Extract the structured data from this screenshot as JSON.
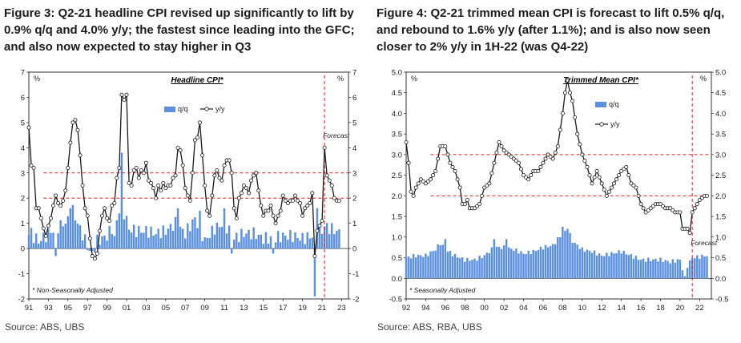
{
  "left": {
    "figure_title": "Figure 3: Q2-21 headline CPI revised up significantly to lift by 0.9% q/q and 4.0% y/y; the fastest since leading into the GFC; and also now expected to stay higher in Q3",
    "source": "Source: ABS, UBS"
  },
  "right": {
    "figure_title": "Figure 4: Q2-21 trimmed mean CPI is forecast to lift 0.5% q/q, and rebound to 1.6% y/y (after 1.1%); and is also now seen closer to 2% y/y in 1H-22 (was Q4-22)",
    "source": "Source: ABS, RBA, UBS"
  },
  "colors": {
    "bar": "#5b8fe0",
    "line": "#1a1a1a",
    "ref": "#e02020"
  },
  "chart_data": [
    {
      "type": "bar+line",
      "title": "Headline CPI*",
      "unit_left": "%",
      "unit_right": "%",
      "ylim": [
        -2,
        7
      ],
      "yticks": [
        -2,
        -1,
        0,
        1,
        2,
        3,
        4,
        5,
        6,
        7
      ],
      "x_range": [
        1991,
        2023.7
      ],
      "x_ticks": [
        1991,
        1993,
        1995,
        1997,
        1999,
        2001,
        2003,
        2005,
        2007,
        2009,
        2011,
        2013,
        2015,
        2017,
        2019,
        2021,
        2023
      ],
      "x_tick_labels": [
        "91",
        "93",
        "95",
        "97",
        "99",
        "01",
        "03",
        "05",
        "07",
        "09",
        "11",
        "13",
        "15",
        "17",
        "19",
        "21",
        "23"
      ],
      "legend": [
        "q/q",
        "y/y"
      ],
      "reference_lines": [
        3,
        2
      ],
      "reference_x_start": 1992.5,
      "forecast_start": 2021.25,
      "forecast_label": "Forecast",
      "note": "* Non-Seasonally Adjusted",
      "yoy_knots": [
        [
          1991.0,
          4.8
        ],
        [
          1991.25,
          3.3
        ],
        [
          1991.5,
          3.2
        ],
        [
          1991.75,
          1.6
        ],
        [
          1992.0,
          1.6
        ],
        [
          1992.25,
          1.2
        ],
        [
          1992.5,
          0.8
        ],
        [
          1992.75,
          0.5
        ],
        [
          1993.0,
          0.9
        ],
        [
          1993.25,
          1.2
        ],
        [
          1993.5,
          1.7
        ],
        [
          1993.75,
          2.1
        ],
        [
          1994.0,
          1.8
        ],
        [
          1994.25,
          1.7
        ],
        [
          1994.5,
          1.9
        ],
        [
          1994.75,
          2.3
        ],
        [
          1995.0,
          3.2
        ],
        [
          1995.25,
          4.2
        ],
        [
          1995.5,
          5.0
        ],
        [
          1995.75,
          5.1
        ],
        [
          1996.0,
          4.7
        ],
        [
          1996.25,
          3.7
        ],
        [
          1996.5,
          2.5
        ],
        [
          1996.75,
          1.6
        ],
        [
          1997.0,
          1.3
        ],
        [
          1997.25,
          0.4
        ],
        [
          1997.5,
          -0.3
        ],
        [
          1997.75,
          -0.4
        ],
        [
          1998.0,
          -0.2
        ],
        [
          1998.25,
          0.7
        ],
        [
          1998.5,
          1.3
        ],
        [
          1998.75,
          1.6
        ],
        [
          1999.0,
          1.2
        ],
        [
          1999.25,
          1.1
        ],
        [
          1999.5,
          1.7
        ],
        [
          1999.75,
          1.8
        ],
        [
          2000.0,
          2.8
        ],
        [
          2000.25,
          3.2
        ],
        [
          2000.5,
          6.1
        ],
        [
          2000.75,
          5.9
        ],
        [
          2001.0,
          6.1
        ],
        [
          2001.25,
          2.6
        ],
        [
          2001.5,
          2.5
        ],
        [
          2001.75,
          3.1
        ],
        [
          2002.0,
          3.2
        ],
        [
          2002.25,
          2.8
        ],
        [
          2002.5,
          3.1
        ],
        [
          2002.75,
          3.0
        ],
        [
          2003.0,
          3.4
        ],
        [
          2003.25,
          2.7
        ],
        [
          2003.5,
          2.6
        ],
        [
          2003.75,
          2.4
        ],
        [
          2004.0,
          2.0
        ],
        [
          2004.25,
          2.5
        ],
        [
          2004.5,
          2.3
        ],
        [
          2004.75,
          2.6
        ],
        [
          2005.0,
          2.4
        ],
        [
          2005.25,
          2.5
        ],
        [
          2005.5,
          2.5
        ],
        [
          2005.75,
          2.8
        ],
        [
          2006.0,
          2.9
        ],
        [
          2006.25,
          4.0
        ],
        [
          2006.5,
          3.9
        ],
        [
          2006.75,
          3.3
        ],
        [
          2007.0,
          2.4
        ],
        [
          2007.25,
          2.1
        ],
        [
          2007.5,
          1.9
        ],
        [
          2007.75,
          3.0
        ],
        [
          2008.0,
          4.3
        ],
        [
          2008.25,
          4.4
        ],
        [
          2008.5,
          5.0
        ],
        [
          2008.75,
          3.7
        ],
        [
          2009.0,
          2.5
        ],
        [
          2009.25,
          1.5
        ],
        [
          2009.5,
          1.3
        ],
        [
          2009.75,
          2.1
        ],
        [
          2010.0,
          2.9
        ],
        [
          2010.25,
          3.1
        ],
        [
          2010.5,
          2.8
        ],
        [
          2010.75,
          2.7
        ],
        [
          2011.0,
          3.3
        ],
        [
          2011.25,
          3.5
        ],
        [
          2011.5,
          3.5
        ],
        [
          2011.75,
          3.0
        ],
        [
          2012.0,
          1.6
        ],
        [
          2012.25,
          1.2
        ],
        [
          2012.5,
          2.0
        ],
        [
          2012.75,
          2.2
        ],
        [
          2013.0,
          2.5
        ],
        [
          2013.25,
          2.4
        ],
        [
          2013.5,
          2.2
        ],
        [
          2013.75,
          2.7
        ],
        [
          2014.0,
          2.9
        ],
        [
          2014.25,
          3.0
        ],
        [
          2014.5,
          2.3
        ],
        [
          2014.75,
          1.7
        ],
        [
          2015.0,
          1.3
        ],
        [
          2015.25,
          1.5
        ],
        [
          2015.5,
          1.5
        ],
        [
          2015.75,
          1.7
        ],
        [
          2016.0,
          1.3
        ],
        [
          2016.25,
          1.0
        ],
        [
          2016.5,
          1.3
        ],
        [
          2016.75,
          1.5
        ],
        [
          2017.0,
          2.1
        ],
        [
          2017.25,
          1.9
        ],
        [
          2017.5,
          1.8
        ],
        [
          2017.75,
          1.9
        ],
        [
          2018.0,
          1.9
        ],
        [
          2018.25,
          2.1
        ],
        [
          2018.5,
          1.9
        ],
        [
          2018.75,
          1.8
        ],
        [
          2019.0,
          1.3
        ],
        [
          2019.25,
          1.6
        ],
        [
          2019.5,
          1.7
        ],
        [
          2019.75,
          1.8
        ],
        [
          2020.0,
          2.2
        ],
        [
          2020.25,
          -0.3
        ],
        [
          2020.5,
          0.7
        ],
        [
          2020.75,
          0.9
        ],
        [
          2021.0,
          1.1
        ],
        [
          2021.25,
          4.0
        ],
        [
          2021.5,
          2.9
        ],
        [
          2021.75,
          2.7
        ],
        [
          2022.0,
          2.5
        ],
        [
          2022.25,
          2.0
        ],
        [
          2022.5,
          1.9
        ],
        [
          2022.75,
          1.9
        ]
      ],
      "qoq_knots": [
        [
          1991.0,
          0.7
        ],
        [
          1992.0,
          0.2
        ],
        [
          1993.0,
          0.6
        ],
        [
          1995.0,
          1.1
        ],
        [
          1995.5,
          1.5
        ],
        [
          1996.0,
          1.0
        ],
        [
          1997.0,
          0.1
        ],
        [
          1997.5,
          -0.2
        ],
        [
          1998.0,
          0.3
        ],
        [
          1999.0,
          0.5
        ],
        [
          2000.0,
          1.1
        ],
        [
          2000.5,
          2.0
        ],
        [
          2001.0,
          0.8
        ],
        [
          2002.0,
          0.7
        ],
        [
          2003.0,
          0.7
        ],
        [
          2004.0,
          0.6
        ],
        [
          2005.0,
          0.7
        ],
        [
          2006.0,
          1.0
        ],
        [
          2007.0,
          0.6
        ],
        [
          2008.0,
          1.2
        ],
        [
          2009.0,
          0.3
        ],
        [
          2010.0,
          0.8
        ],
        [
          2011.0,
          1.0
        ],
        [
          2012.0,
          0.4
        ],
        [
          2013.0,
          0.6
        ],
        [
          2014.0,
          0.6
        ],
        [
          2015.0,
          0.4
        ],
        [
          2016.0,
          0.4
        ],
        [
          2017.0,
          0.5
        ],
        [
          2018.0,
          0.5
        ],
        [
          2019.0,
          0.4
        ],
        [
          2020.0,
          0.5
        ],
        [
          2021.0,
          0.7
        ],
        [
          2021.25,
          0.9
        ],
        [
          2023.0,
          0.6
        ]
      ],
      "qoq_overrides": [
        [
          1991.75,
          0.6
        ],
        [
          1992.25,
          0.3
        ],
        [
          1993.75,
          -0.3
        ],
        [
          1995.25,
          1.6
        ],
        [
          1997.25,
          -0.1
        ],
        [
          1999.75,
          0.5
        ],
        [
          2000.5,
          3.8
        ],
        [
          2001.0,
          1.3
        ],
        [
          2006.25,
          1.6
        ],
        [
          2008.5,
          1.5
        ],
        [
          2011.0,
          1.6
        ],
        [
          2011.75,
          -0.2
        ],
        [
          2016.0,
          -0.2
        ],
        [
          2020.25,
          -1.9
        ],
        [
          2020.5,
          1.6
        ]
      ]
    },
    {
      "type": "bar+line",
      "title": "Trimmed Mean CPI*",
      "unit_left": "%",
      "unit_right": "%",
      "ylim": [
        -0.5,
        5.0
      ],
      "yticks": [
        -0.5,
        0.0,
        0.5,
        1.0,
        1.5,
        2.0,
        2.5,
        3.0,
        3.5,
        4.0,
        4.5,
        5.0
      ],
      "ytick_labels": [
        "-0.5",
        "0.0",
        "0.5",
        "1.0",
        "1.5",
        "2.0",
        "2.5",
        "3.0",
        "3.5",
        "4.0",
        "4.5",
        "5.0"
      ],
      "x_range": [
        1992,
        2023.2
      ],
      "x_ticks": [
        1992,
        1994,
        1996,
        1998,
        2000,
        2002,
        2004,
        2006,
        2008,
        2010,
        2012,
        2014,
        2016,
        2018,
        2020,
        2022
      ],
      "x_tick_labels": [
        "92",
        "94",
        "96",
        "98",
        "00",
        "02",
        "04",
        "06",
        "08",
        "10",
        "12",
        "14",
        "16",
        "18",
        "20",
        "22"
      ],
      "legend": [
        "q/q",
        "y/y"
      ],
      "reference_lines": [
        3.0,
        2.0
      ],
      "reference_x_start": 1994.5,
      "forecast_start": 2021.25,
      "forecast_label": "Forecast",
      "note": "* Seasonally Adjusted",
      "yoy_knots": [
        [
          1992.0,
          3.3
        ],
        [
          1992.25,
          2.8
        ],
        [
          1992.5,
          2.1
        ],
        [
          1992.75,
          2.0
        ],
        [
          1993.0,
          2.2
        ],
        [
          1993.5,
          2.4
        ],
        [
          1994.0,
          2.3
        ],
        [
          1994.5,
          2.4
        ],
        [
          1995.0,
          2.6
        ],
        [
          1995.5,
          3.2
        ],
        [
          1996.0,
          3.2
        ],
        [
          1996.5,
          2.8
        ],
        [
          1997.0,
          2.6
        ],
        [
          1997.5,
          2.2
        ],
        [
          1997.75,
          1.8
        ],
        [
          1998.0,
          1.8
        ],
        [
          1998.25,
          1.9
        ],
        [
          1998.5,
          1.7
        ],
        [
          1999.0,
          1.7
        ],
        [
          1999.5,
          1.8
        ],
        [
          2000.0,
          2.2
        ],
        [
          2000.5,
          2.3
        ],
        [
          2001.0,
          2.8
        ],
        [
          2001.5,
          3.3
        ],
        [
          2002.0,
          3.1
        ],
        [
          2002.5,
          3.0
        ],
        [
          2003.0,
          2.9
        ],
        [
          2003.5,
          2.8
        ],
        [
          2004.0,
          2.5
        ],
        [
          2004.5,
          2.4
        ],
        [
          2005.0,
          2.6
        ],
        [
          2005.5,
          2.6
        ],
        [
          2006.0,
          2.8
        ],
        [
          2006.5,
          3.0
        ],
        [
          2007.0,
          2.9
        ],
        [
          2007.5,
          3.2
        ],
        [
          2008.0,
          4.0
        ],
        [
          2008.25,
          4.5
        ],
        [
          2008.5,
          4.8
        ],
        [
          2008.75,
          4.5
        ],
        [
          2009.0,
          4.3
        ],
        [
          2009.5,
          3.5
        ],
        [
          2010.0,
          3.0
        ],
        [
          2010.5,
          2.7
        ],
        [
          2011.0,
          2.3
        ],
        [
          2011.5,
          2.6
        ],
        [
          2012.0,
          2.3
        ],
        [
          2012.5,
          2.0
        ],
        [
          2013.0,
          2.2
        ],
        [
          2013.5,
          2.4
        ],
        [
          2014.0,
          2.6
        ],
        [
          2014.5,
          2.7
        ],
        [
          2015.0,
          2.3
        ],
        [
          2015.5,
          2.2
        ],
        [
          2016.0,
          1.8
        ],
        [
          2016.5,
          1.6
        ],
        [
          2017.0,
          1.7
        ],
        [
          2017.5,
          1.8
        ],
        [
          2018.0,
          1.8
        ],
        [
          2018.5,
          1.7
        ],
        [
          2019.0,
          1.7
        ],
        [
          2019.5,
          1.6
        ],
        [
          2020.0,
          1.6
        ],
        [
          2020.25,
          1.2
        ],
        [
          2020.75,
          1.2
        ],
        [
          2021.0,
          1.1
        ],
        [
          2021.25,
          1.6
        ],
        [
          2021.5,
          1.7
        ],
        [
          2022.0,
          1.9
        ],
        [
          2022.5,
          2.0
        ],
        [
          2022.75,
          2.0
        ]
      ],
      "qoq_knots": [
        [
          1992.0,
          0.5
        ],
        [
          1993.0,
          0.55
        ],
        [
          1994.0,
          0.55
        ],
        [
          1995.0,
          0.7
        ],
        [
          1995.5,
          0.85
        ],
        [
          1996.0,
          0.7
        ],
        [
          1997.0,
          0.55
        ],
        [
          1998.0,
          0.45
        ],
        [
          1999.0,
          0.45
        ],
        [
          2000.0,
          0.55
        ],
        [
          2001.0,
          0.75
        ],
        [
          2002.0,
          0.75
        ],
        [
          2003.0,
          0.7
        ],
        [
          2004.0,
          0.6
        ],
        [
          2005.0,
          0.65
        ],
        [
          2006.0,
          0.75
        ],
        [
          2007.0,
          0.8
        ],
        [
          2008.0,
          1.1
        ],
        [
          2008.5,
          1.2
        ],
        [
          2009.0,
          0.9
        ],
        [
          2010.0,
          0.7
        ],
        [
          2011.0,
          0.65
        ],
        [
          2012.0,
          0.55
        ],
        [
          2013.0,
          0.6
        ],
        [
          2014.0,
          0.65
        ],
        [
          2015.0,
          0.55
        ],
        [
          2016.0,
          0.45
        ],
        [
          2017.0,
          0.45
        ],
        [
          2018.0,
          0.45
        ],
        [
          2019.0,
          0.4
        ],
        [
          2020.0,
          0.45
        ],
        [
          2020.5,
          0.0
        ],
        [
          2020.75,
          0.3
        ],
        [
          2021.0,
          0.4
        ],
        [
          2021.25,
          0.5
        ],
        [
          2022.75,
          0.55
        ]
      ],
      "qoq_overrides": [
        [
          1996.0,
          0.95
        ],
        [
          2001.0,
          0.95
        ],
        [
          2002.25,
          0.95
        ],
        [
          2008.0,
          1.25
        ],
        [
          2008.5,
          1.2
        ],
        [
          2008.25,
          1.15
        ],
        [
          2020.5,
          0.05
        ]
      ]
    }
  ]
}
